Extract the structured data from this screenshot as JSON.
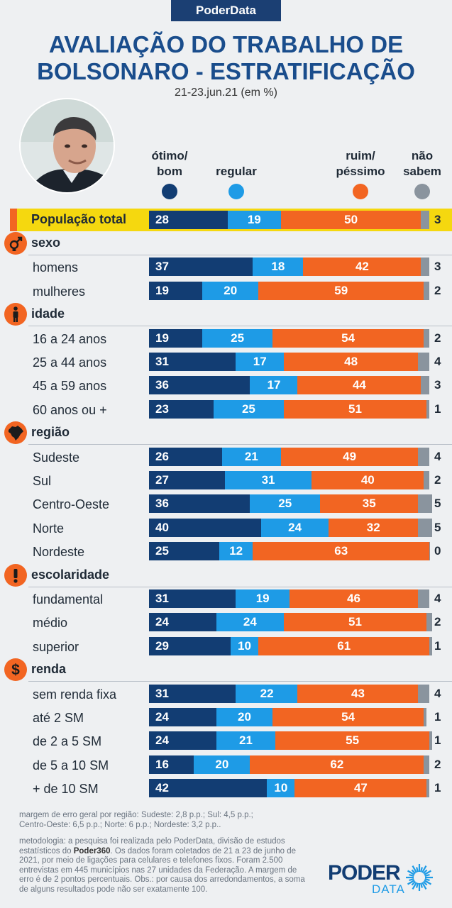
{
  "header": {
    "brand": "PoderData",
    "title_line1": "AVALIAÇÃO DO TRABALHO DE",
    "title_line2": "BOLSONARO - ESTRATIFICAÇÃO",
    "subtitle": "21-23.jun.21 (em %)"
  },
  "legend": [
    {
      "label_line1": "ótimo/",
      "label_line2": "bom",
      "color": "#123d73"
    },
    {
      "label_line1": "",
      "label_line2": "regular",
      "color": "#1e9be6"
    },
    {
      "label_line1": "ruim/",
      "label_line2": "péssimo",
      "color": "#f26522"
    },
    {
      "label_line1": "não",
      "label_line2": "sabem",
      "color": "#8a949e"
    }
  ],
  "chart_data": {
    "type": "bar",
    "stacked": "horizontal-100",
    "title": "AVALIAÇÃO DO TRABALHO DE BOLSONARO - ESTRATIFICAÇÃO",
    "subtitle": "21-23.jun.21 (em %)",
    "series_names": [
      "ótimo/bom",
      "regular",
      "ruim/péssimo",
      "não sabem"
    ],
    "colors": [
      "#123d73",
      "#1e9be6",
      "#f26522",
      "#8a949e"
    ],
    "total": {
      "label": "População total",
      "values": [
        28,
        19,
        50,
        3
      ]
    },
    "groups": [
      {
        "name": "sexo",
        "icon": "gender-icon",
        "rows": [
          {
            "label": "homens",
            "values": [
              37,
              18,
              42,
              3
            ]
          },
          {
            "label": "mulheres",
            "values": [
              19,
              20,
              59,
              2
            ]
          }
        ]
      },
      {
        "name": "idade",
        "icon": "person-icon",
        "rows": [
          {
            "label": "16 a 24 anos",
            "values": [
              19,
              25,
              54,
              2
            ]
          },
          {
            "label": "25 a 44 anos",
            "values": [
              31,
              17,
              48,
              4
            ]
          },
          {
            "label": "45 a 59 anos",
            "values": [
              36,
              17,
              44,
              3
            ]
          },
          {
            "label": "60 anos ou +",
            "values": [
              23,
              25,
              51,
              1
            ]
          }
        ]
      },
      {
        "name": "região",
        "icon": "brazil-map-icon",
        "rows": [
          {
            "label": "Sudeste",
            "values": [
              26,
              21,
              49,
              4
            ]
          },
          {
            "label": "Sul",
            "values": [
              27,
              31,
              40,
              2
            ]
          },
          {
            "label": "Centro-Oeste",
            "values": [
              36,
              25,
              35,
              5
            ]
          },
          {
            "label": "Norte",
            "values": [
              40,
              24,
              32,
              5
            ]
          },
          {
            "label": "Nordeste",
            "values": [
              25,
              12,
              63,
              0
            ]
          }
        ]
      },
      {
        "name": "escolaridade",
        "icon": "exclamation-icon",
        "rows": [
          {
            "label": "fundamental",
            "values": [
              31,
              19,
              46,
              4
            ]
          },
          {
            "label": "médio",
            "values": [
              24,
              24,
              51,
              2
            ]
          },
          {
            "label": "superior",
            "values": [
              29,
              10,
              61,
              1
            ]
          }
        ]
      },
      {
        "name": "renda",
        "icon": "dollar-icon",
        "rows": [
          {
            "label": "sem renda fixa",
            "values": [
              31,
              22,
              43,
              4
            ]
          },
          {
            "label": "até 2 SM",
            "values": [
              24,
              20,
              54,
              1
            ]
          },
          {
            "label": "de 2 a 5 SM",
            "values": [
              24,
              21,
              55,
              1
            ]
          },
          {
            "label": "de 5 a 10 SM",
            "values": [
              16,
              20,
              62,
              2
            ]
          },
          {
            "label": "+ de 10 SM",
            "values": [
              42,
              10,
              47,
              1
            ]
          }
        ]
      }
    ]
  },
  "notes": {
    "margin_line1": "margem de erro geral por região: Sudeste: 2,8 p.p.; Sul: 4,5 p.p.;",
    "margin_line2": "Centro-Oeste: 6,5 p.p.; Norte: 6 p.p.; Nordeste: 3,2 p.p..",
    "method_line1": "metodologia: a pesquisa foi realizada pelo PoderData, divisão de estudos",
    "method_line2_a": "estatísticos do ",
    "method_line2_b": "Poder360",
    "method_line2_c": ". Os dados foram coletados de 21 a 23 de junho de",
    "method_line3": "2021, por meio de ligações para celulares e telefones fixos. Foram 2.500",
    "method_line4": "entrevistas em 445 municípios nas 27 unidades da Federação. A margem de",
    "method_line5": "erro é de 2 pontos percentuais. Obs.: por causa dos arredondamentos, a soma",
    "method_line6": "de alguns resultados pode não ser exatamente 100."
  },
  "logo": {
    "line1": "PODER",
    "line2": "DATA",
    "accent": "#1e9be6",
    "dark": "#123d73"
  }
}
